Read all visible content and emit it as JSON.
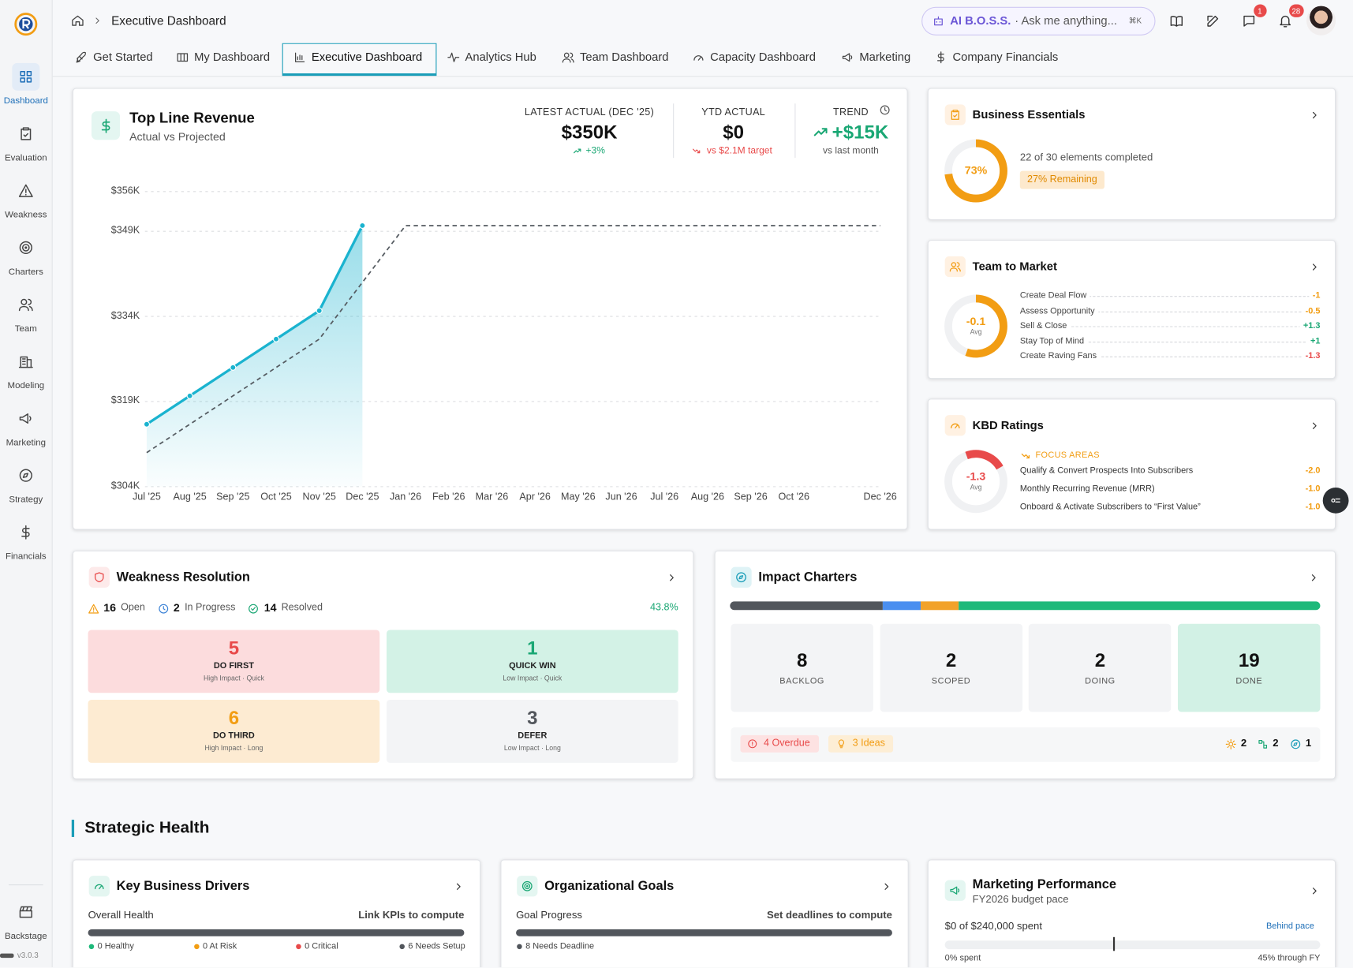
{
  "sidebar": {
    "items": [
      "Dashboard",
      "Evaluation",
      "Weakness",
      "Charters",
      "Team",
      "Modeling",
      "Marketing",
      "Strategy",
      "Financials"
    ],
    "active": 0,
    "footer": "Backstage",
    "version": "v3.0.3"
  },
  "header": {
    "breadcrumb": "Executive Dashboard",
    "assistant": "AI B.O.S.S.",
    "prompt": "· Ask me anything...",
    "shortcut": "⌘K",
    "messages_badge": 1,
    "notifications_badge": 28
  },
  "tabs": {
    "items": [
      "Get Started",
      "My Dashboard",
      "Executive Dashboard",
      "Analytics Hub",
      "Team Dashboard",
      "Capacity Dashboard",
      "Marketing",
      "Company Financials"
    ],
    "active": 2
  },
  "revenue": {
    "title": "Top Line Revenue",
    "subtitle": "Actual vs Projected",
    "kpis": [
      {
        "label": "LATEST ACTUAL (DEC '25)",
        "value": "$350K",
        "note": "+3%"
      },
      {
        "label": "YTD ACTUAL",
        "value": "$0",
        "note": "vs $2.1M target"
      },
      {
        "label": "TREND",
        "value": "+$15K",
        "note": "vs last month"
      }
    ]
  },
  "chart_data": {
    "type": "line",
    "categories": [
      "Jul '25",
      "Aug '25",
      "Sep '25",
      "Oct '25",
      "Nov '25",
      "Dec '25",
      "Jan '26",
      "Feb '26",
      "Mar '26",
      "Apr '26",
      "May '26",
      "Jun '26",
      "Jul '26",
      "Aug '26",
      "Sep '26",
      "Oct '26",
      null,
      "Dec '26"
    ],
    "series": [
      {
        "color": "#1ab3cf",
        "dash": false,
        "area": true,
        "markers": true,
        "values": [
          315000,
          320000,
          325000,
          330000,
          335000,
          350000,
          null,
          null,
          null,
          null,
          null,
          null,
          null,
          null,
          null,
          null,
          null,
          null
        ]
      },
      {
        "color": "#555b61",
        "dash": true,
        "area": false,
        "markers": false,
        "values": [
          310000,
          315000,
          320000,
          325000,
          330000,
          340000,
          350000,
          350000,
          350000,
          350000,
          350000,
          350000,
          350000,
          350000,
          350000,
          350000,
          350000,
          350000
        ]
      }
    ],
    "ylim": [
      304000,
      356000
    ],
    "yticks": [
      {
        "value": 304000,
        "label": "$304K"
      },
      {
        "value": 319000,
        "label": "$319K"
      },
      {
        "value": 334000,
        "label": "$334K"
      },
      {
        "value": 349000,
        "label": "$349K"
      },
      {
        "value": 356000,
        "label": "$356K"
      }
    ],
    "grid": true
  },
  "business_essentials": {
    "title": "Business Essentials",
    "percent": 73,
    "percent_label": "73%",
    "detail": "22 of 30 elements completed",
    "remaining": "27% Remaining"
  },
  "team_to_market": {
    "title": "Team to Market",
    "avg": -0.1,
    "avg_label": "Avg",
    "items": [
      {
        "label": "Create Deal Flow",
        "value": "-1"
      },
      {
        "label": "Assess Opportunity",
        "value": "-0.5"
      },
      {
        "label": "Sell & Close",
        "value": "+1.3"
      },
      {
        "label": "Stay Top of Mind",
        "value": "+1"
      },
      {
        "label": "Create Raving Fans",
        "value": "-1.3"
      }
    ]
  },
  "kbd_ratings": {
    "title": "KBD Ratings",
    "avg": -1.3,
    "avg_label": "Avg",
    "focus": "FOCUS AREAS",
    "items": [
      {
        "label": "Qualify & Convert Prospects Into Subscribers",
        "value": "-2.0"
      },
      {
        "label": "Monthly Recurring Revenue (MRR)",
        "value": "-1.0"
      },
      {
        "label": "Onboard & Activate Subscribers to “First Value”",
        "value": "-1.0"
      }
    ]
  },
  "weakness": {
    "title": "Weakness Resolution",
    "stats": [
      {
        "count": 16,
        "label": "Open"
      },
      {
        "count": 2,
        "label": "In Progress"
      },
      {
        "count": 14,
        "label": "Resolved"
      }
    ],
    "rate": "43.8%",
    "quadrants": [
      {
        "count": 5,
        "label": "DO FIRST",
        "sub": "High Impact · Quick"
      },
      {
        "count": 1,
        "label": "QUICK WIN",
        "sub": "Low Impact · Quick"
      },
      {
        "count": 6,
        "label": "DO THIRD",
        "sub": "High Impact · Long"
      },
      {
        "count": 3,
        "label": "DEFER",
        "sub": "Low Impact · Long"
      }
    ]
  },
  "impact": {
    "title": "Impact Charters",
    "stages": [
      {
        "count": 8,
        "label": "BACKLOG",
        "color": "#52565c"
      },
      {
        "count": 2,
        "label": "SCOPED",
        "color": "#4a8ff0"
      },
      {
        "count": 2,
        "label": "DOING",
        "color": "#f2a22a"
      },
      {
        "count": 19,
        "label": "DONE",
        "color": "#1eb97a"
      }
    ],
    "overdue": "4 Overdue",
    "ideas": "3 Ideas",
    "counts": [
      2,
      2,
      1
    ]
  },
  "strategic": {
    "heading": "Strategic Health",
    "drivers": {
      "title": "Key Business Drivers",
      "metric": "Overall Health",
      "action": "Link KPIs to compute",
      "legend": [
        {
          "text": "0 Healthy",
          "color": "#1eb97a"
        },
        {
          "text": "0 At Risk",
          "color": "#f29d13"
        },
        {
          "text": "0 Critical",
          "color": "#e84a4a"
        },
        {
          "text": "6 Needs Setup",
          "color": "#52565c"
        }
      ]
    },
    "goals": {
      "title": "Organizational Goals",
      "metric": "Goal Progress",
      "action": "Set deadlines to compute",
      "legend": [
        {
          "text": "8 Needs Deadline",
          "color": "#52565c"
        }
      ]
    },
    "marketing": {
      "title": "Marketing Performance",
      "subtitle": "FY2026 budget pace",
      "spent": "$0 of $240,000 spent",
      "status": "Behind pace",
      "start": "0% spent",
      "pace": 45,
      "pace_label": "45% through FY"
    }
  }
}
